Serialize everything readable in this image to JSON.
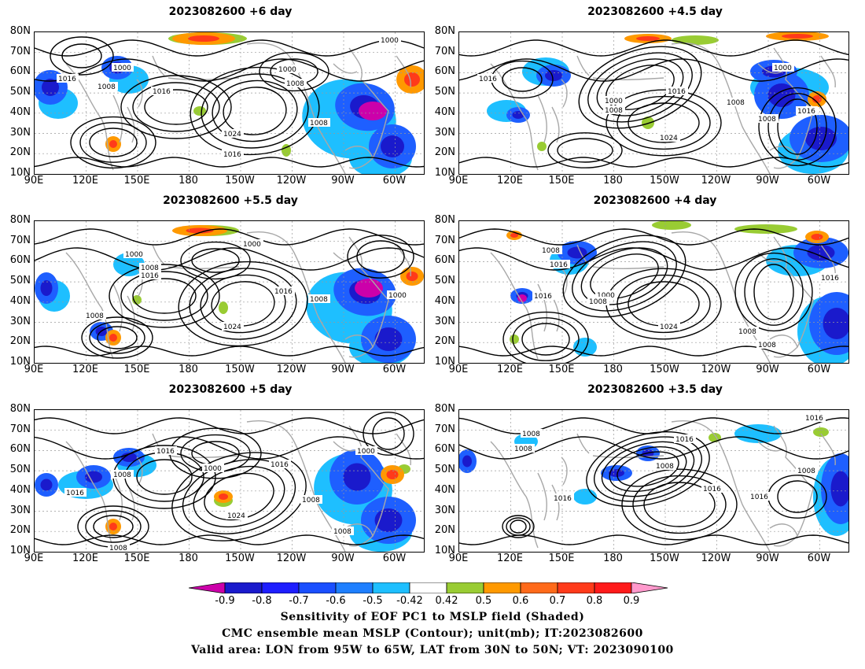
{
  "panels": [
    {
      "title": "2023082600  +6 day"
    },
    {
      "title": "2023082600  +4.5 day"
    },
    {
      "title": "2023082600  +5.5 day"
    },
    {
      "title": "2023082600  +4 day"
    },
    {
      "title": "2023082600  +5 day"
    },
    {
      "title": "2023082600  +3.5 day"
    }
  ],
  "lat_labels": [
    "80N",
    "70N",
    "60N",
    "50N",
    "40N",
    "30N",
    "20N",
    "10N"
  ],
  "lon_labels": [
    "90E",
    "120E",
    "150E",
    "180",
    "150W",
    "120W",
    "90W",
    "60W"
  ],
  "contour_labels": {
    "p0": [
      "1016",
      "1008",
      "1000",
      "1016",
      "1024",
      "1016",
      "1000",
      "1008",
      "1008",
      "1000"
    ],
    "p1": [
      "1016",
      "1000",
      "1008",
      "1016",
      "1024",
      "1008",
      "1000",
      "1016",
      "1008"
    ],
    "p2": [
      "1000",
      "1008",
      "1016",
      "1008",
      "1024",
      "1016",
      "1008",
      "1000",
      "1000"
    ],
    "p3": [
      "1008",
      "1016",
      "1016",
      "1000",
      "1008",
      "1024",
      "1008",
      "1008",
      "1016"
    ],
    "p4": [
      "1016",
      "1008",
      "1016",
      "1000",
      "1024",
      "1016",
      "1008",
      "1008",
      "1000",
      "1008"
    ],
    "p5": [
      "1008",
      "1008",
      "1016",
      "1008",
      "1016",
      "1016",
      "1016",
      "1008",
      "1016"
    ]
  },
  "colorbar": {
    "ticks": [
      "-0.9",
      "-0.8",
      "-0.7",
      "-0.6",
      "-0.5",
      "-0.42",
      "0.42",
      "0.5",
      "0.6",
      "0.7",
      "0.8",
      "0.9"
    ],
    "colors": [
      "#cc00aa",
      "#1a1acc",
      "#1e1eff",
      "#1a4fff",
      "#1e7fff",
      "#1ebfff",
      "#ffffff",
      "#99cc33",
      "#ff9900",
      "#ff6a1a",
      "#ff3a1a",
      "#ff1a1a",
      "#ff99cc"
    ]
  },
  "caption": {
    "line1": "Sensitivity of EOF PC1 to MSLP field (Shaded)",
    "line2": "CMC ensemble mean MSLP (Contour); unit(mb); IT:2023082600",
    "line3": "Valid area: LON from 95W to 65W, LAT from 30N to 50N; VT: 2023090100"
  }
}
